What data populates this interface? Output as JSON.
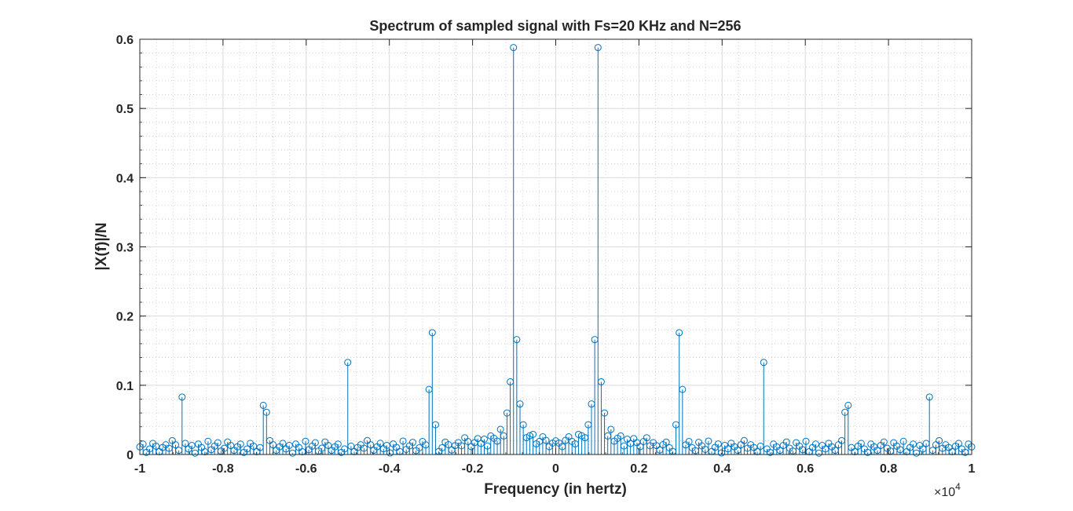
{
  "chart_data": {
    "type": "stem",
    "title": "Spectrum of sampled signal with Fs=20 KHz and N=256",
    "xlabel": "Frequency (in hertz)",
    "ylabel": "|X(f)|/N",
    "x_exponent_label": "×10",
    "x_exponent_power": "4",
    "xlim": [
      -10000,
      10000
    ],
    "ylim": [
      0,
      0.6
    ],
    "xticks": [
      -10000,
      -8000,
      -6000,
      -4000,
      -2000,
      0,
      2000,
      4000,
      6000,
      8000,
      10000
    ],
    "xtick_labels": [
      "-1",
      "-0.8",
      "-0.6",
      "-0.4",
      "-0.2",
      "0",
      "0.2",
      "0.4",
      "0.6",
      "0.8",
      "1"
    ],
    "yticks": [
      0,
      0.1,
      0.2,
      0.3,
      0.4,
      0.5,
      0.6
    ],
    "ytick_labels": [
      "0",
      "0.1",
      "0.2",
      "0.3",
      "0.4",
      "0.5",
      "0.6"
    ],
    "grid": "major-and-minor",
    "bin_spacing_hz": 78.125,
    "series": [
      {
        "color": "#0072BD",
        "peaks": [
          {
            "x": -9000,
            "y": 0.083
          },
          {
            "x": -7031,
            "y": 0.071
          },
          {
            "x": -6953,
            "y": 0.061
          },
          {
            "x": -5000,
            "y": 0.133
          },
          {
            "x": -3047,
            "y": 0.094
          },
          {
            "x": -2969,
            "y": 0.176
          },
          {
            "x": -2891,
            "y": 0.043
          },
          {
            "x": -1172,
            "y": 0.06
          },
          {
            "x": -1094,
            "y": 0.105
          },
          {
            "x": -1016,
            "y": 0.588
          },
          {
            "x": -938,
            "y": 0.166
          },
          {
            "x": -859,
            "y": 0.073
          },
          {
            "x": -781,
            "y": 0.043
          },
          {
            "x": 781,
            "y": 0.043
          },
          {
            "x": 859,
            "y": 0.073
          },
          {
            "x": 938,
            "y": 0.166
          },
          {
            "x": 1016,
            "y": 0.588
          },
          {
            "x": 1094,
            "y": 0.105
          },
          {
            "x": 1172,
            "y": 0.06
          },
          {
            "x": 2891,
            "y": 0.043
          },
          {
            "x": 2969,
            "y": 0.176
          },
          {
            "x": 3047,
            "y": 0.094
          },
          {
            "x": 5000,
            "y": 0.133
          },
          {
            "x": 6953,
            "y": 0.061
          },
          {
            "x": 7031,
            "y": 0.071
          },
          {
            "x": 9000,
            "y": 0.083
          }
        ],
        "floor_values": [
          0.014,
          0.01,
          0.004,
          0.012,
          0.016,
          0.008,
          0.003,
          0.015,
          0.011,
          0.006,
          0.013,
          0.018,
          0.009,
          0.005,
          0.017,
          0.012,
          0.007,
          0.019,
          0.004,
          0.01,
          0.015,
          0.002,
          0.013,
          0.008,
          0.016,
          0.011,
          0.006,
          0.014,
          0.02,
          0.009
        ]
      }
    ]
  }
}
